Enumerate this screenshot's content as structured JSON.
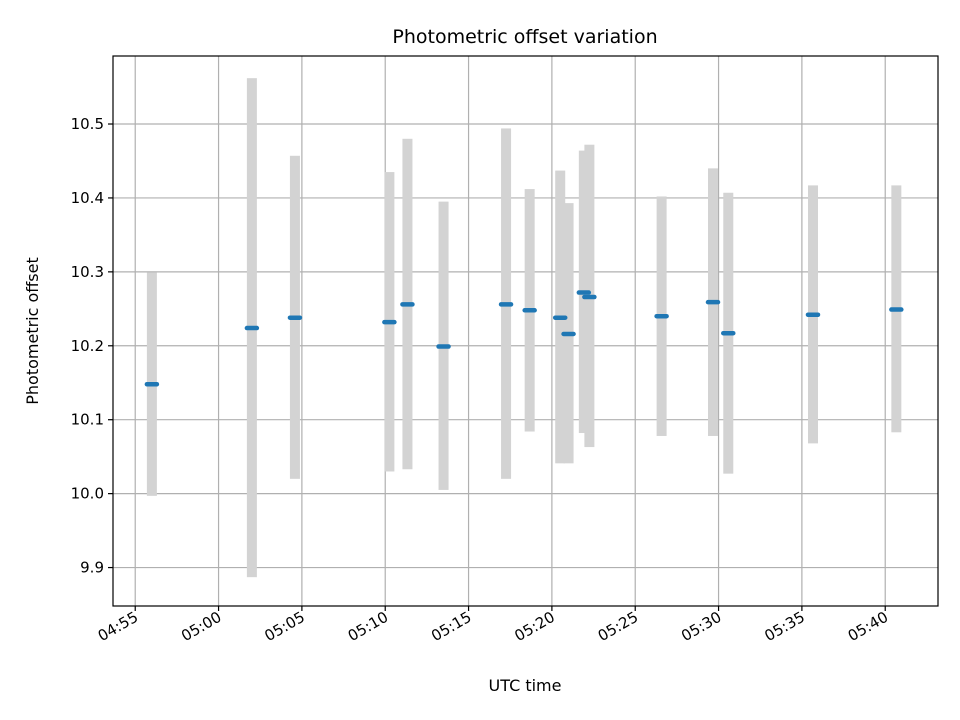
{
  "chart_data": {
    "type": "scatter",
    "title": "Photometric offset variation",
    "xlabel": "UTC time",
    "ylabel": "Photometric offset",
    "x_ticks": [
      "04:55",
      "05:00",
      "05:05",
      "05:10",
      "05:15",
      "05:20",
      "05:25",
      "05:30",
      "05:35",
      "05:40"
    ],
    "y_ticks": [
      "9.9",
      "10.0",
      "10.1",
      "10.2",
      "10.3",
      "10.4",
      "10.5"
    ],
    "xlim": [
      "04:53:40",
      "05:43:10"
    ],
    "ylim": [
      9.848,
      10.592
    ],
    "grid": true,
    "colors": {
      "point": "#1f77b4",
      "errorbar": "#d3d3d3",
      "grid": "#b0b0b0"
    },
    "points": [
      {
        "t": "04:56:00",
        "y": 10.148,
        "ylo": 9.997,
        "yhi": 10.299
      },
      {
        "t": "05:02:00",
        "y": 10.224,
        "ylo": 9.887,
        "yhi": 10.562
      },
      {
        "t": "05:04:35",
        "y": 10.238,
        "ylo": 10.02,
        "yhi": 10.457
      },
      {
        "t": "05:10:15",
        "y": 10.232,
        "ylo": 10.03,
        "yhi": 10.435
      },
      {
        "t": "05:11:20",
        "y": 10.256,
        "ylo": 10.033,
        "yhi": 10.48
      },
      {
        "t": "05:13:30",
        "y": 10.199,
        "ylo": 10.005,
        "yhi": 10.395
      },
      {
        "t": "05:17:15",
        "y": 10.256,
        "ylo": 10.02,
        "yhi": 10.494
      },
      {
        "t": "05:18:40",
        "y": 10.248,
        "ylo": 10.084,
        "yhi": 10.412
      },
      {
        "t": "05:20:30",
        "y": 10.238,
        "ylo": 10.041,
        "yhi": 10.437
      },
      {
        "t": "05:21:00",
        "y": 10.216,
        "ylo": 10.041,
        "yhi": 10.393
      },
      {
        "t": "05:21:55",
        "y": 10.272,
        "ylo": 10.082,
        "yhi": 10.464
      },
      {
        "t": "05:22:15",
        "y": 10.266,
        "ylo": 10.063,
        "yhi": 10.472
      },
      {
        "t": "05:26:35",
        "y": 10.24,
        "ylo": 10.078,
        "yhi": 10.402
      },
      {
        "t": "05:29:40",
        "y": 10.259,
        "ylo": 10.078,
        "yhi": 10.44
      },
      {
        "t": "05:30:35",
        "y": 10.217,
        "ylo": 10.027,
        "yhi": 10.407
      },
      {
        "t": "05:35:40",
        "y": 10.242,
        "ylo": 10.068,
        "yhi": 10.417
      },
      {
        "t": "05:40:40",
        "y": 10.249,
        "ylo": 10.083,
        "yhi": 10.417
      }
    ]
  }
}
